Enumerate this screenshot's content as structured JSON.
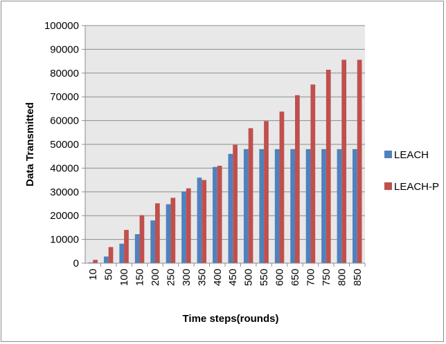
{
  "chart_data": {
    "type": "bar",
    "title": "",
    "xlabel": "Time steps(rounds)",
    "ylabel": "Data Transmitted",
    "ylim": [
      0,
      100000
    ],
    "yticks": [
      0,
      10000,
      20000,
      30000,
      40000,
      50000,
      60000,
      70000,
      80000,
      90000,
      100000
    ],
    "categories": [
      "10",
      "50",
      "100",
      "150",
      "200",
      "250",
      "300",
      "350",
      "400",
      "450",
      "500",
      "550",
      "600",
      "650",
      "700",
      "750",
      "800",
      "850"
    ],
    "series": [
      {
        "name": "LEACH",
        "color": "#4f81bd",
        "values": [
          300,
          2800,
          8200,
          12200,
          18000,
          24800,
          30200,
          36000,
          40500,
          46000,
          48000,
          48000,
          48000,
          48000,
          48000,
          48000,
          48000,
          48000
        ]
      },
      {
        "name": "LEACH-P",
        "color": "#c0504d",
        "values": [
          1400,
          6800,
          14000,
          20200,
          25200,
          27500,
          31500,
          35000,
          41000,
          49800,
          56800,
          59800,
          63800,
          70700,
          75200,
          81400,
          85600,
          85600
        ]
      }
    ],
    "grid": true,
    "plot_background": "#e8e8e8",
    "legend": "right"
  }
}
